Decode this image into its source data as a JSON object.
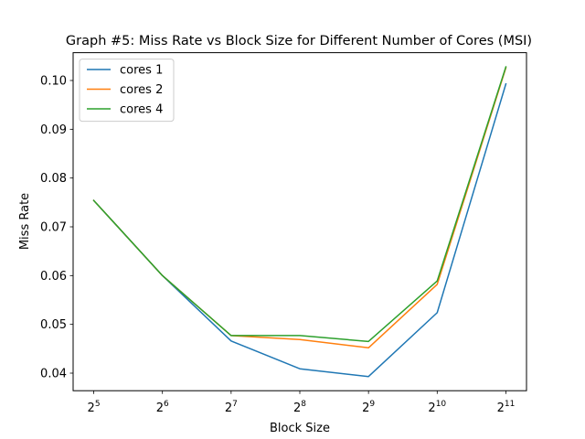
{
  "chart_data": {
    "type": "line",
    "title": "Graph #5: Miss Rate vs Block Size for Different Number of Cores (MSI)",
    "xlabel": "Block Size",
    "ylabel": "Miss Rate",
    "x": [
      32,
      64,
      128,
      256,
      512,
      1024,
      2048
    ],
    "x_tick_labels": [
      {
        "base": "2",
        "exp": "5"
      },
      {
        "base": "2",
        "exp": "6"
      },
      {
        "base": "2",
        "exp": "7"
      },
      {
        "base": "2",
        "exp": "8"
      },
      {
        "base": "2",
        "exp": "9"
      },
      {
        "base": "2",
        "exp": "10"
      },
      {
        "base": "2",
        "exp": "11"
      }
    ],
    "x_scale": "log2",
    "ylim": [
      0.0364,
      0.1057
    ],
    "y_ticks": [
      0.04,
      0.05,
      0.06,
      0.07,
      0.08,
      0.09,
      0.1
    ],
    "y_tick_labels": [
      "0.04",
      "0.05",
      "0.06",
      "0.07",
      "0.08",
      "0.09",
      "0.10"
    ],
    "grid": false,
    "legend_position": "top-left",
    "series": [
      {
        "name": "cores 1",
        "color": "#1f77b4",
        "values": [
          0.0754,
          0.06,
          0.0466,
          0.0409,
          0.0393,
          0.0524,
          0.0993
        ]
      },
      {
        "name": "cores 2",
        "color": "#ff7f0e",
        "values": [
          0.0754,
          0.06,
          0.0477,
          0.0469,
          0.0452,
          0.0582,
          0.1026
        ]
      },
      {
        "name": "cores 4",
        "color": "#2ca02c",
        "values": [
          0.0754,
          0.06,
          0.0477,
          0.0477,
          0.0465,
          0.0589,
          0.1028
        ]
      }
    ]
  }
}
